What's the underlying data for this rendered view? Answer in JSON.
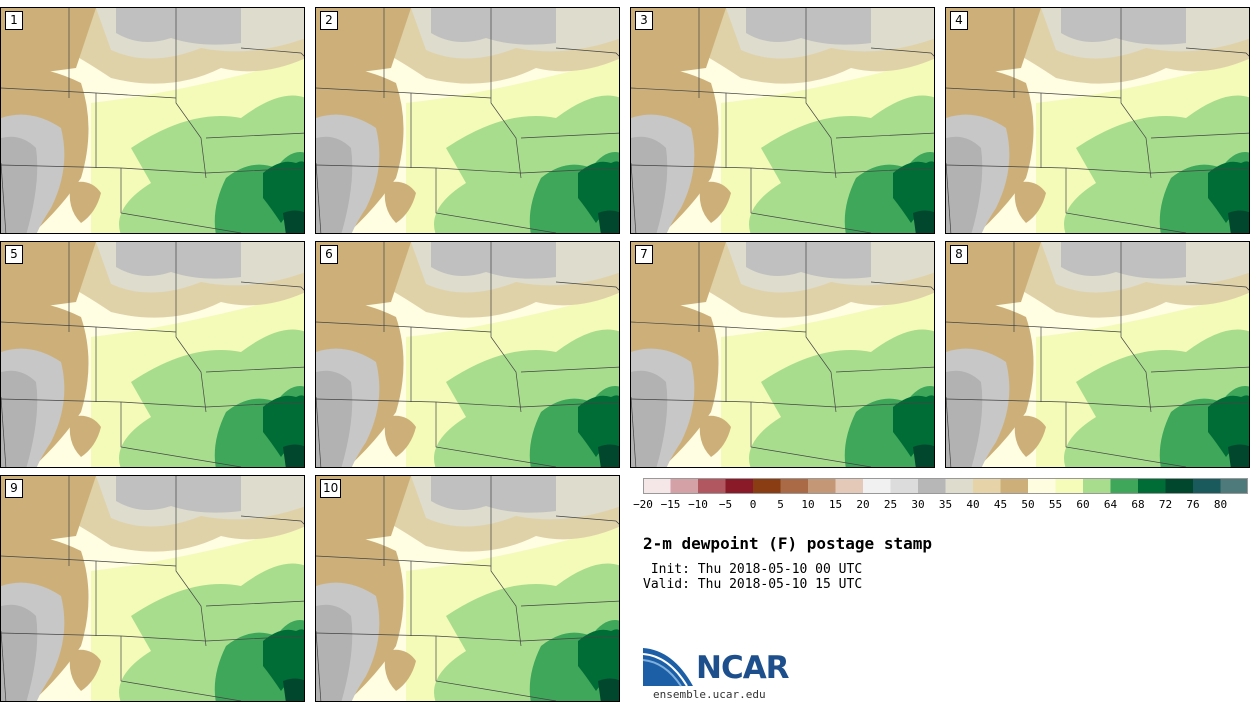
{
  "title": "2-m dewpoint (F) postage stamp",
  "init_line": " Init: Thu 2018-05-10 00 UTC",
  "valid_line": "Valid: Thu 2018-05-10 15 UTC",
  "site": "ensemble.ucar.edu",
  "logo_text": "NCAR",
  "members": [
    "1",
    "2",
    "3",
    "4",
    "5",
    "6",
    "7",
    "8",
    "9",
    "10"
  ],
  "colorbar": {
    "colors": [
      "#f5e6e8",
      "#d4a1a7",
      "#b0575f",
      "#8b1a28",
      "#8a3d12",
      "#aa6a45",
      "#c49877",
      "#e4c8b8",
      "#f1f1f1",
      "#dcdcdc",
      "#b7b7b7",
      "#dddccd",
      "#e6d4a8",
      "#cdb079",
      "#fffde0",
      "#f5fbb8",
      "#a8dd8e",
      "#3ea759",
      "#006d37",
      "#00472d",
      "#1a5a5c",
      "#4f7a7c"
    ],
    "ticks": [
      "−20",
      "−15",
      "−10",
      "−5",
      "0",
      "5",
      "10",
      "15",
      "20",
      "25",
      "30",
      "35",
      "40",
      "45",
      "50",
      "55",
      "60",
      "64",
      "68",
      "72",
      "76",
      "80"
    ]
  }
}
